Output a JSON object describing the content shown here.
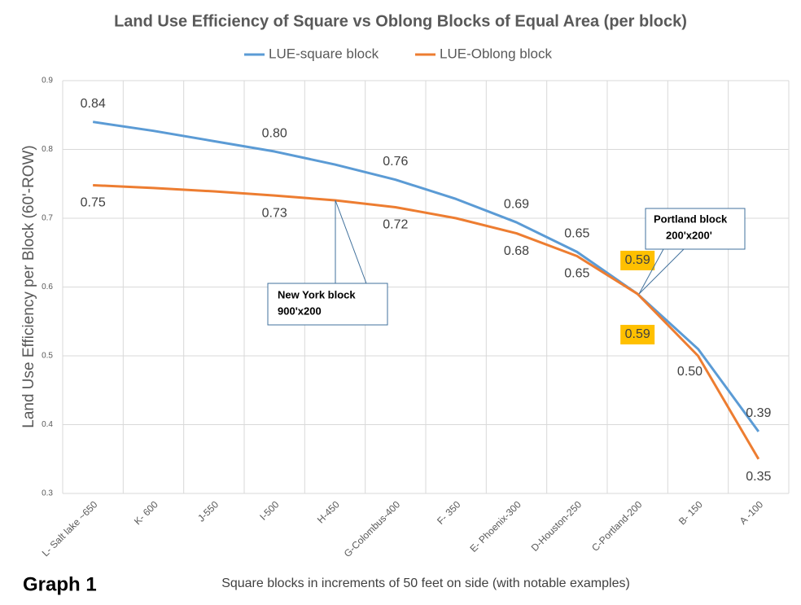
{
  "chart_data": {
    "type": "line",
    "title": "Land Use Efficiency of Square vs Oblong Blocks of Equal Area (per block)",
    "x_label": "Square blocks in increments of 50 feet on side (with notable examples)",
    "y_label": "Land Use Efficiency per Block (60'-ROW)",
    "corner_label": "Graph 1",
    "categories": [
      "L- Salt lake ~650",
      "K- 600",
      "J-550",
      "I-500",
      "H-450",
      "G-Colombus-400",
      "F- 350",
      "E- Phoenix-300",
      "D-Houston-250",
      "C-Portland-200",
      "B- 150",
      "A -100"
    ],
    "series": [
      {
        "name": "LUE-square block",
        "color": "#5b9bd5",
        "values": [
          0.84,
          0.827,
          0.812,
          0.797,
          0.778,
          0.756,
          0.728,
          0.694,
          0.651,
          0.59,
          0.51,
          0.39
        ],
        "value_labels": [
          "0.84",
          null,
          null,
          "0.80",
          null,
          "0.76",
          null,
          "0.69",
          "0.65",
          "0.59",
          null,
          "0.39"
        ]
      },
      {
        "name": "LUE-Oblong block",
        "color": "#ed7d31",
        "values": [
          0.748,
          0.744,
          0.739,
          0.733,
          0.726,
          0.716,
          0.7,
          0.678,
          0.645,
          0.59,
          0.5,
          0.35
        ],
        "value_labels": [
          "0.75",
          null,
          null,
          "0.73",
          null,
          "0.72",
          null,
          "0.68",
          "0.65",
          "0.59",
          "0.50",
          "0.35"
        ]
      }
    ],
    "ylim": [
      0.3,
      0.9
    ],
    "yticks": [
      0.3,
      0.4,
      0.5,
      0.6,
      0.7,
      0.8,
      0.9
    ],
    "grid": true,
    "legend": "top",
    "annotations": [
      {
        "lines": [
          "New York block",
          "900'x200"
        ]
      },
      {
        "lines": [
          "Portland  block",
          "200'x200'"
        ]
      }
    ]
  }
}
